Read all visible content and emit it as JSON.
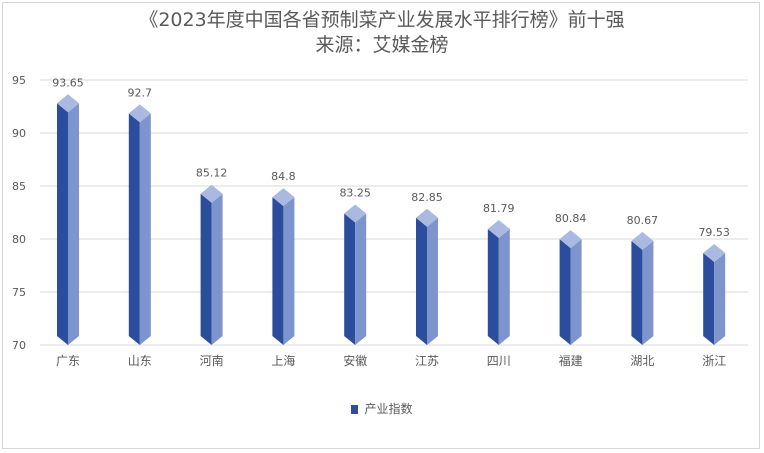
{
  "chart_data": {
    "type": "bar",
    "title": "《2023年度中国各省预制菜产业发展水平排行榜》前十强",
    "subtitle": "来源：艾媒金榜",
    "categories": [
      "广东",
      "山东",
      "河南",
      "上海",
      "安徽",
      "江苏",
      "四川",
      "福建",
      "湖北",
      "浙江"
    ],
    "series": [
      {
        "name": "产业指数",
        "values": [
          93.65,
          92.7,
          85.12,
          84.8,
          83.25,
          82.85,
          81.79,
          80.84,
          80.67,
          79.53
        ],
        "labels": [
          "93.65",
          "92.7",
          "85.12",
          "84.8",
          "83.25",
          "82.85",
          "81.79",
          "80.84",
          "80.67",
          "79.53"
        ]
      }
    ],
    "ylim": [
      70,
      95
    ],
    "yticks": [
      70,
      75,
      80,
      85,
      90,
      95
    ],
    "grid": true,
    "legend_position": "bottom",
    "colors": {
      "bar_dark": "#2b4d9e",
      "bar_light": "#7d94cc",
      "bar_cap": "#a9b9e0",
      "grid": "#d9d9d9",
      "text": "#595959"
    }
  }
}
